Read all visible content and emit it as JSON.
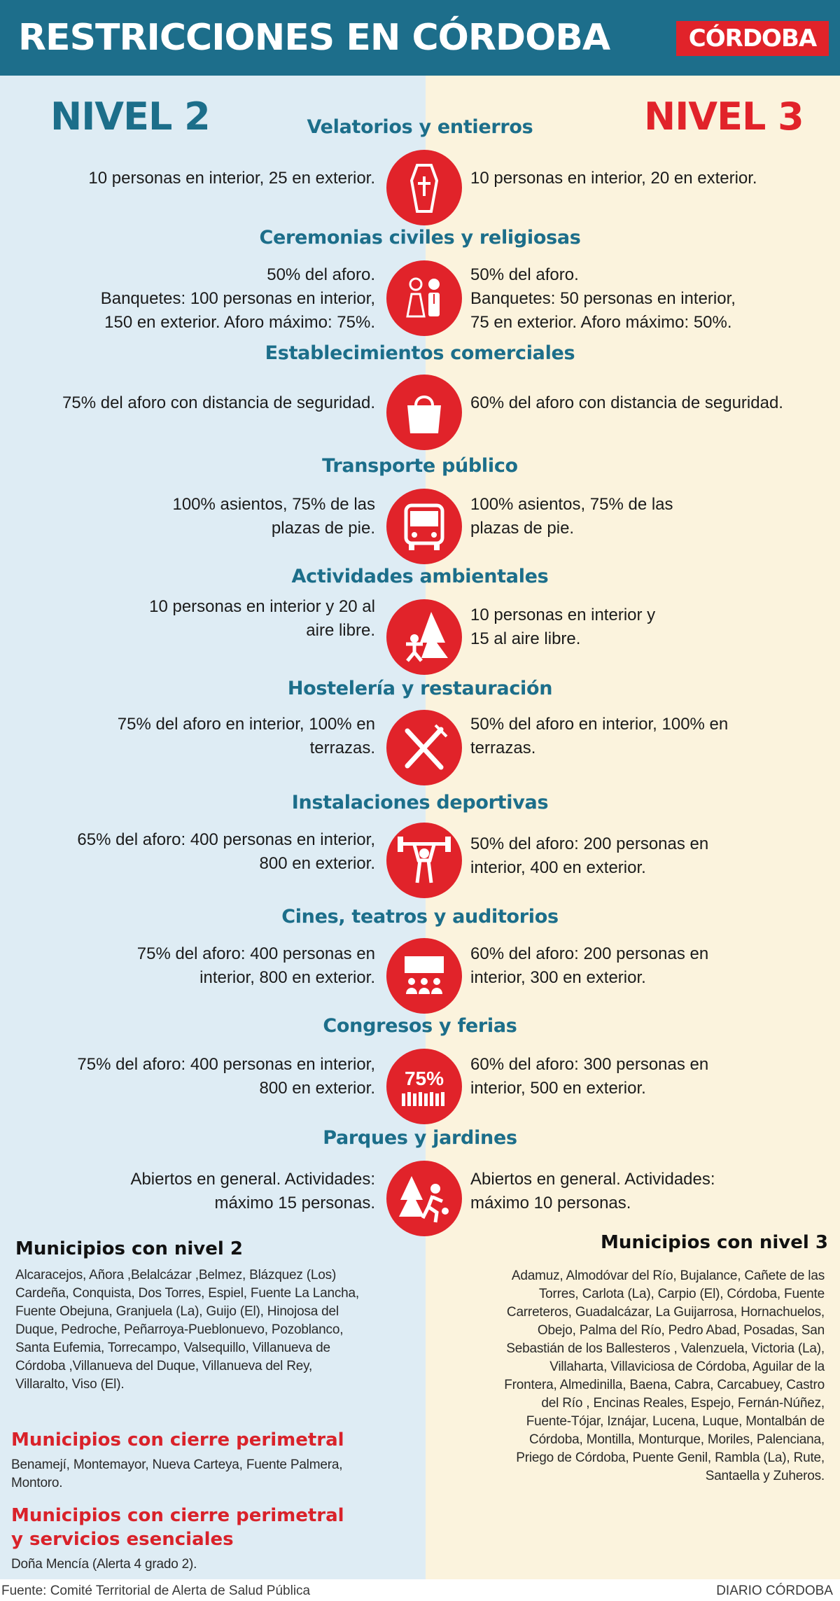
{
  "header": {
    "title": "RESTRICCIONES EN CÓRDOBA",
    "logo": "CÓRDOBA"
  },
  "levels": {
    "left": "NIVEL 2",
    "right": "NIVEL 3"
  },
  "sections": [
    {
      "title": "Velatorios y entierros",
      "icon": "coffin-icon",
      "left": "10  personas en interior, 25 en exterior.",
      "right": "10  personas en interior, 20 en exterior."
    },
    {
      "title": "Ceremonias civiles y religiosas",
      "icon": "wedding-couple-icon",
      "left": "50% del aforo.\nBanquetes: 100 personas en interior,\n150 en exterior. Aforo máximo: 75%.",
      "right": "50% del aforo.\nBanquetes: 50 personas en interior,\n75 en exterior. Aforo máximo: 50%."
    },
    {
      "title": "Establecimientos comerciales",
      "icon": "shopping-bag-icon",
      "left": "75% del aforo con distancia de seguridad.",
      "right": "60% del aforo con distancia de seguridad."
    },
    {
      "title": "Transporte público",
      "icon": "bus-icon",
      "left": "100% asientos, 75% de las\nplazas de pie.",
      "right": "100% asientos, 75% de las\nplazas de pie."
    },
    {
      "title": "Actividades ambientales",
      "icon": "nature-activity-icon",
      "left": "10 personas en interior y 20 al\naire libre.",
      "right": "10 personas en interior y\n15 al aire libre."
    },
    {
      "title": "Hostelería y restauración",
      "icon": "fork-knife-icon",
      "left": "75% del aforo en interior, 100% en\nterrazas.",
      "right": "50% del aforo en interior, 100% en\nterrazas."
    },
    {
      "title": "Instalaciones deportivas",
      "icon": "weightlifter-icon",
      "left": "65% del aforo: 400 personas en interior,\n800 en exterior.",
      "right": "50% del aforo: 200 personas en\ninterior, 400 en exterior."
    },
    {
      "title": "Cines, teatros y auditorios",
      "icon": "cinema-audience-icon",
      "left": "75% del aforo: 400 personas en\ninterior, 800 en exterior.",
      "right": "60% del aforo: 200 personas en\ninterior, 300 en exterior."
    },
    {
      "title": "Congresos y ferias",
      "icon": "crowd-percent-icon",
      "icon_label": "75%",
      "left": "75% del aforo: 400 personas en interior,\n800 en exterior.",
      "right": "60% del aforo: 300 personas en\ninterior, 500 en exterior."
    },
    {
      "title": "Parques y jardines",
      "icon": "park-runner-icon",
      "left": "Abiertos en general. Actividades:\nmáximo 15 personas.",
      "right": "Abiertos en general. Actividades:\nmáximo 10 personas."
    }
  ],
  "municipios": {
    "nivel2_title": "Municipios con nivel 2",
    "nivel2_list": "Alcaracejos, Añora ,Belalcázar ,Belmez, Blázquez (Los)\nCardeña, Conquista, Dos Torres, Espiel, Fuente La Lancha,\nFuente Obejuna, Granjuela (La), Guijo (El), Hinojosa del\nDuque, Pedroche, Peñarroya-Pueblonuevo, Pozoblanco,\nSanta Eufemia, Torrecampo, Valsequillo, Villanueva de\nCórdoba ,Villanueva del Duque, Villanueva del Rey,\nVillaralto, Viso (El).",
    "cierre_title": "Municipios con cierre perimetral",
    "cierre_list": "Benamejí, Montemayor, Nueva Carteya,  Fuente Palmera,\nMontoro.",
    "cierre_esenciales_title": "Municipios con cierre perimetral\ny servicios esenciales",
    "cierre_esenciales_list": "Doña Mencía (Alerta 4 grado 2).",
    "nivel3_title": "Municipios con nivel 3",
    "nivel3_list": "Adamuz, Almodóvar del Río, Bujalance, Cañete de las\nTorres, Carlota (La), Carpio (El), Córdoba, Fuente\nCarreteros, Guadalcázar, La Guijarrosa, Hornachuelos,\nObejo, Palma del Río, Pedro Abad, Posadas, San\nSebastián de los Ballesteros , Valenzuela, Victoria (La),\nVillaharta, Villaviciosa de Córdoba, Aguilar de la\nFrontera, Almedinilla, Baena, Cabra, Carcabuey, Castro\ndel Río , Encinas Reales, Espejo, Fernán-Núñez,\nFuente-Tójar, Iznájar, Lucena, Luque, Montalbán de\nCórdoba, Montilla, Monturque, Moriles, Palenciana,\nPriego de Córdoba, Puente Genil, Rambla (La), Rute,\nSantaella y Zuheros."
  },
  "footer": {
    "source": "Fuente: Comité Territorial de Alerta de Salud Pública",
    "credit": "DIARIO CÓRDOBA"
  },
  "colors": {
    "header": "#1d6e8b",
    "accent_red": "#e1232a",
    "left_bg": "#deecf4",
    "right_bg": "#fbf3dd",
    "title_blue": "#1c6e8a"
  }
}
